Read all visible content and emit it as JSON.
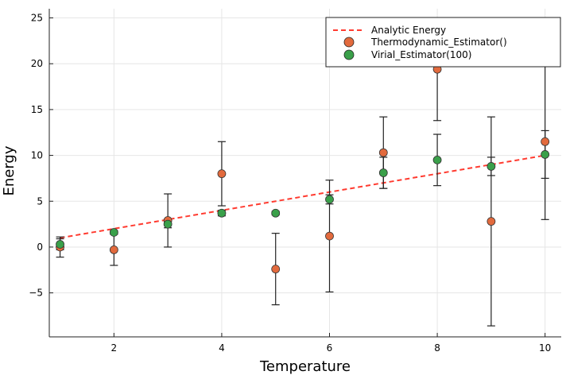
{
  "chart_data": {
    "type": "scatter",
    "title": "",
    "xlabel": "Temperature",
    "ylabel": "Energy",
    "xlim": [
      0.8,
      10.3
    ],
    "ylim": [
      -9.8,
      26
    ],
    "xticks": [
      2,
      4,
      6,
      8,
      10
    ],
    "yticks": [
      -5,
      0,
      5,
      10,
      15,
      20,
      25
    ],
    "grid": true,
    "legend_position": "top-right",
    "line": {
      "name": "Analytic Energy",
      "color": "#ff3b30",
      "x": [
        1,
        10
      ],
      "y": [
        1,
        10
      ]
    },
    "series": [
      {
        "name": "Thermodynamic_Estimator()",
        "color": "#e26a3d",
        "x": [
          1,
          2,
          3,
          4,
          5,
          6,
          7,
          8,
          9,
          10
        ],
        "y": [
          0.0,
          -0.3,
          2.9,
          8.0,
          -2.4,
          1.2,
          10.3,
          19.4,
          2.8,
          11.5
        ],
        "yerr": [
          1.1,
          1.7,
          2.9,
          3.5,
          3.9,
          6.1,
          3.9,
          5.6,
          11.4,
          8.5
        ]
      },
      {
        "name": "Virial_Estimator(100)",
        "color": "#3aa04a",
        "x": [
          1,
          2,
          3,
          4,
          5,
          6,
          7,
          8,
          9,
          10
        ],
        "y": [
          0.3,
          1.6,
          2.5,
          3.7,
          3.7,
          5.2,
          8.1,
          9.5,
          8.8,
          10.1
        ],
        "yerr": [
          0.6,
          0.2,
          0.4,
          0.3,
          0.2,
          0.5,
          1.7,
          2.8,
          1.0,
          2.6
        ]
      }
    ]
  }
}
